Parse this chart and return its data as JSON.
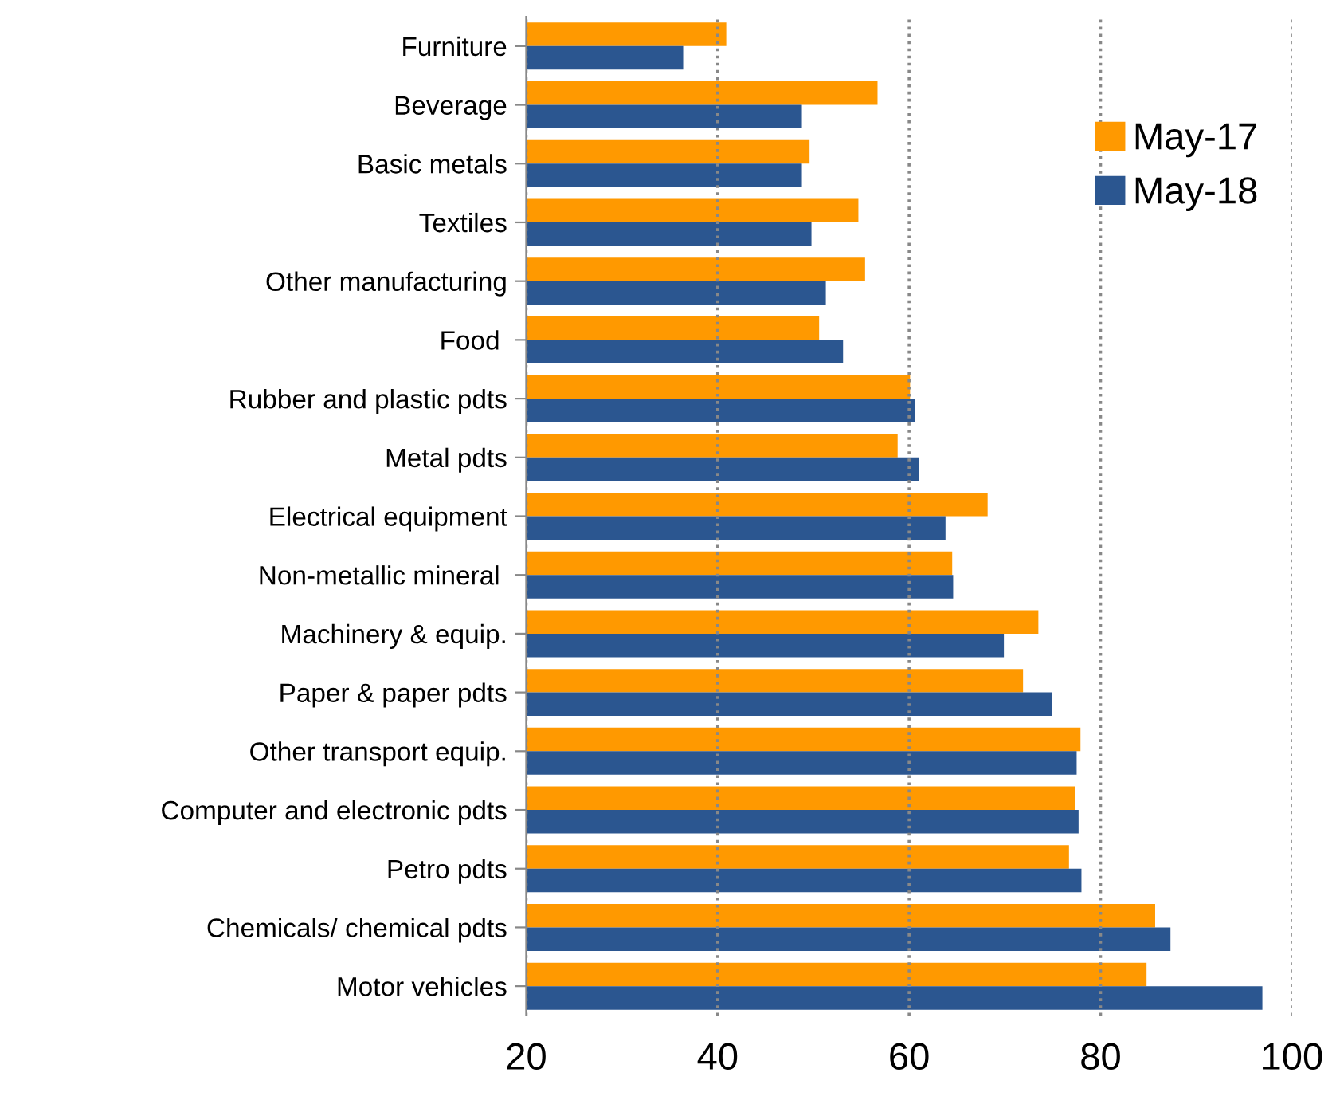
{
  "chart_data": {
    "type": "bar",
    "orientation": "horizontal",
    "categories": [
      "Furniture",
      "Beverage",
      "Basic metals",
      "Textiles",
      "Other manufacturing",
      "Food ",
      "Rubber and plastic pdts",
      "Metal pdts",
      "Electrical equipment",
      "Non-metallic mineral ",
      "Machinery & equip.",
      "Paper & paper pdts",
      "Other transport equip.",
      "Computer and electronic pdts",
      "Petro pdts",
      "Chemicals/ chemical pdts",
      "Motor vehicles"
    ],
    "series": [
      {
        "name": "May-17",
        "color": "#ff9900",
        "values": [
          40.9,
          56.7,
          49.6,
          54.7,
          55.4,
          50.6,
          60.1,
          58.8,
          68.2,
          64.5,
          73.5,
          71.9,
          77.9,
          77.3,
          76.7,
          85.7,
          84.8
        ]
      },
      {
        "name": "May-18",
        "color": "#2b5690",
        "values": [
          36.4,
          48.8,
          48.8,
          49.8,
          51.3,
          53.1,
          60.6,
          61.0,
          63.8,
          64.6,
          69.9,
          74.9,
          77.5,
          77.7,
          78.0,
          87.3,
          96.9
        ]
      }
    ],
    "xlim": [
      20,
      100
    ],
    "xticks": [
      20,
      40,
      60,
      80,
      100
    ],
    "grid": "x",
    "legend": "right"
  }
}
